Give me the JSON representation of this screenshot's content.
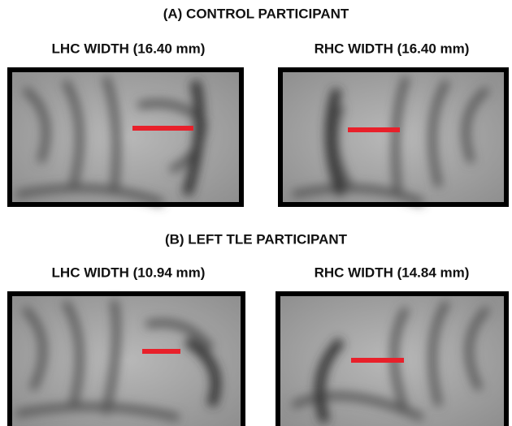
{
  "sections": [
    {
      "title": "(A) CONTROL PARTICIPANT",
      "panels": [
        {
          "label": "LHC WIDTH (16.40 mm)"
        },
        {
          "label": "RHC WIDTH (16.40 mm)"
        }
      ]
    },
    {
      "title": "(B) LEFT TLE PARTICIPANT",
      "panels": [
        {
          "label": "LHC WIDTH (10.94 mm)"
        },
        {
          "label": "RHC WIDTH (14.84 mm)"
        }
      ]
    }
  ]
}
